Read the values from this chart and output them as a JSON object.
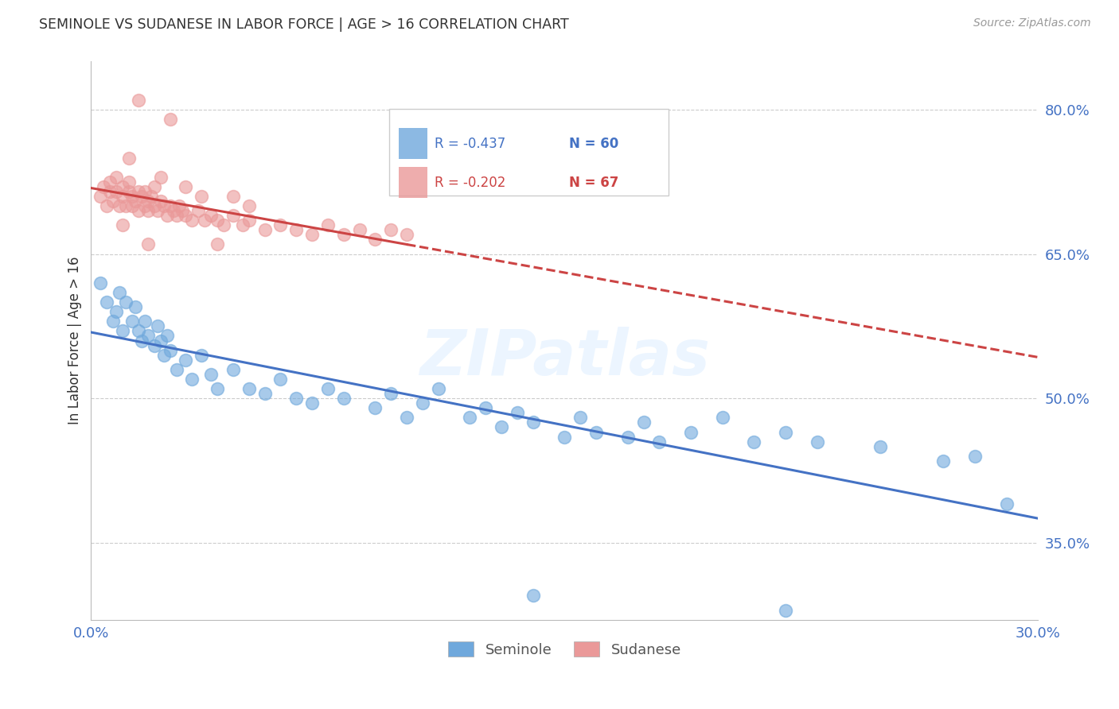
{
  "title": "SEMINOLE VS SUDANESE IN LABOR FORCE | AGE > 16 CORRELATION CHART",
  "source": "Source: ZipAtlas.com",
  "ylabel": "In Labor Force | Age > 16",
  "xlim": [
    0.0,
    0.3
  ],
  "ylim": [
    0.27,
    0.85
  ],
  "yticks": [
    0.35,
    0.5,
    0.65,
    0.8
  ],
  "ytick_labels": [
    "35.0%",
    "50.0%",
    "65.0%",
    "80.0%"
  ],
  "xtick_vals": [
    0.0,
    0.05,
    0.1,
    0.15,
    0.2,
    0.25,
    0.3
  ],
  "xtick_labels": [
    "0.0%",
    "",
    "",
    "",
    "",
    "",
    "30.0%"
  ],
  "seminole_color": "#6fa8dc",
  "sudanese_color": "#ea9999",
  "seminole_line_color": "#4472c4",
  "sudanese_line_color": "#cc4444",
  "legend_R_sem": "-0.437",
  "legend_N_sem": "60",
  "legend_R_sud": "-0.202",
  "legend_N_sud": "67",
  "watermark": "ZIPatlas",
  "seminole_x": [
    0.003,
    0.005,
    0.007,
    0.008,
    0.009,
    0.01,
    0.011,
    0.013,
    0.014,
    0.015,
    0.016,
    0.017,
    0.018,
    0.02,
    0.021,
    0.022,
    0.023,
    0.024,
    0.025,
    0.027,
    0.03,
    0.032,
    0.035,
    0.038,
    0.04,
    0.045,
    0.05,
    0.055,
    0.06,
    0.065,
    0.07,
    0.075,
    0.08,
    0.09,
    0.095,
    0.1,
    0.105,
    0.11,
    0.12,
    0.125,
    0.13,
    0.135,
    0.14,
    0.15,
    0.155,
    0.16,
    0.17,
    0.175,
    0.18,
    0.19,
    0.2,
    0.21,
    0.22,
    0.23,
    0.14,
    0.22,
    0.25,
    0.27,
    0.28,
    0.29
  ],
  "seminole_y": [
    0.62,
    0.6,
    0.58,
    0.59,
    0.61,
    0.57,
    0.6,
    0.58,
    0.595,
    0.57,
    0.56,
    0.58,
    0.565,
    0.555,
    0.575,
    0.56,
    0.545,
    0.565,
    0.55,
    0.53,
    0.54,
    0.52,
    0.545,
    0.525,
    0.51,
    0.53,
    0.51,
    0.505,
    0.52,
    0.5,
    0.495,
    0.51,
    0.5,
    0.49,
    0.505,
    0.48,
    0.495,
    0.51,
    0.48,
    0.49,
    0.47,
    0.485,
    0.475,
    0.46,
    0.48,
    0.465,
    0.46,
    0.475,
    0.455,
    0.465,
    0.48,
    0.455,
    0.465,
    0.455,
    0.295,
    0.28,
    0.45,
    0.435,
    0.44,
    0.39
  ],
  "sudanese_x": [
    0.003,
    0.004,
    0.005,
    0.006,
    0.006,
    0.007,
    0.008,
    0.008,
    0.009,
    0.01,
    0.01,
    0.011,
    0.012,
    0.012,
    0.013,
    0.013,
    0.014,
    0.015,
    0.015,
    0.016,
    0.017,
    0.017,
    0.018,
    0.018,
    0.019,
    0.02,
    0.021,
    0.022,
    0.023,
    0.024,
    0.025,
    0.026,
    0.027,
    0.028,
    0.029,
    0.03,
    0.032,
    0.034,
    0.036,
    0.038,
    0.04,
    0.042,
    0.045,
    0.048,
    0.05,
    0.055,
    0.06,
    0.065,
    0.07,
    0.075,
    0.08,
    0.085,
    0.09,
    0.095,
    0.1,
    0.025,
    0.015,
    0.012,
    0.02,
    0.01,
    0.018,
    0.022,
    0.03,
    0.035,
    0.04,
    0.045,
    0.05
  ],
  "sudanese_y": [
    0.71,
    0.72,
    0.7,
    0.715,
    0.725,
    0.705,
    0.715,
    0.73,
    0.7,
    0.71,
    0.72,
    0.7,
    0.715,
    0.725,
    0.7,
    0.71,
    0.705,
    0.715,
    0.695,
    0.71,
    0.7,
    0.715,
    0.705,
    0.695,
    0.71,
    0.7,
    0.695,
    0.705,
    0.7,
    0.69,
    0.7,
    0.695,
    0.69,
    0.7,
    0.695,
    0.69,
    0.685,
    0.695,
    0.685,
    0.69,
    0.685,
    0.68,
    0.69,
    0.68,
    0.685,
    0.675,
    0.68,
    0.675,
    0.67,
    0.68,
    0.67,
    0.675,
    0.665,
    0.675,
    0.67,
    0.79,
    0.81,
    0.75,
    0.72,
    0.68,
    0.66,
    0.73,
    0.72,
    0.71,
    0.66,
    0.71,
    0.7
  ]
}
